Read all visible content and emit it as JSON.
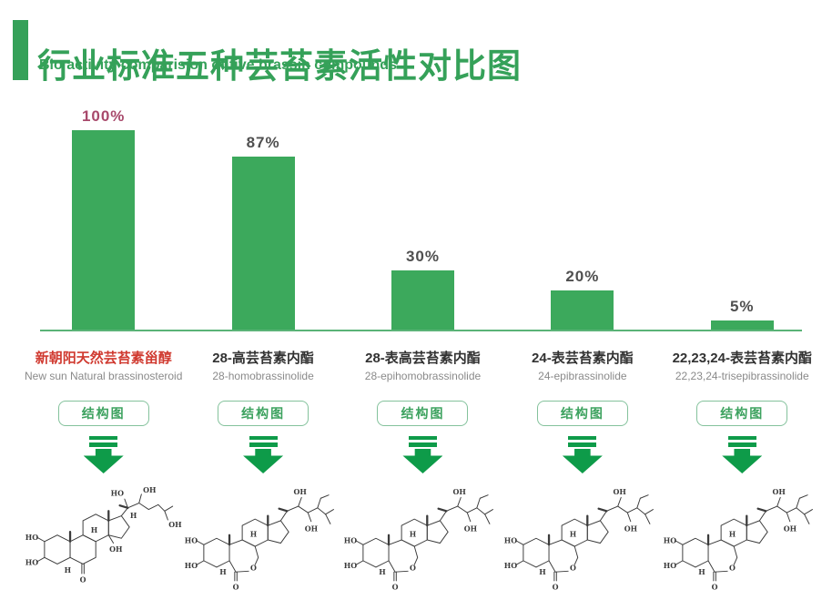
{
  "header": {
    "title_zh": "行业标准五种芸苔素活性对比图",
    "title_en": "Bio activity comparision of five brassin compounds"
  },
  "ui": {
    "structure_button": "结构图"
  },
  "colors": {
    "title_green": "#35a159",
    "bar_green": "#3ca95c",
    "baseline_green": "#5ab377",
    "button_green": "#3da25f",
    "arrow_green": "#0e9b49",
    "highlight_red": "#d03a30",
    "highlight_pink": "#a8496b",
    "percent_gray": "#4f4f4f"
  },
  "chart_data": {
    "type": "bar",
    "title": "行业标准五种芸苔素活性对比图",
    "subtitle": "Bio activity comparision of five brassin compounds",
    "categories": [
      "新朝阳天然芸苔素甾醇",
      "28-高芸苔素内酯",
      "28-表高芸苔素内酯",
      "24-表芸苔素内酯",
      "22,23,24-表芸苔素内酯"
    ],
    "categories_en": [
      "New sun Natural brassinosteroid",
      "28-homobrassinolide",
      "28-epihomobrassinolide",
      "24-epibrassinolide",
      "22,23,24-trisepibrassinolide"
    ],
    "values": [
      100,
      87,
      30,
      20,
      5
    ],
    "value_labels": [
      "100%",
      "87%",
      "30%",
      "20%",
      "5%"
    ],
    "unit": "%",
    "ylim": [
      0,
      100
    ],
    "grid": false,
    "legend": false,
    "bar_color": "#3ca95c"
  },
  "compounds": [
    {
      "value": 100,
      "value_label": "100%",
      "name_zh": "新朝阳天然芸苔素甾醇",
      "name_en": "New sun Natural brassinosteroid",
      "highlight": true,
      "structure_type": "ketone"
    },
    {
      "value": 87,
      "value_label": "87%",
      "name_zh": "28-高芸苔素内酯",
      "name_en": "28-homobrassinolide",
      "highlight": false,
      "structure_type": "lactone"
    },
    {
      "value": 30,
      "value_label": "30%",
      "name_zh": "28-表高芸苔素内酯",
      "name_en": "28-epihomobrassinolide",
      "highlight": false,
      "structure_type": "lactone"
    },
    {
      "value": 20,
      "value_label": "20%",
      "name_zh": "24-表芸苔素内酯",
      "name_en": "24-epibrassinolide",
      "highlight": false,
      "structure_type": "lactone"
    },
    {
      "value": 5,
      "value_label": "5%",
      "name_zh": "22,23,24-表芸苔素内酯",
      "name_en": "22,23,24-trisepibrassinolide",
      "highlight": false,
      "structure_type": "lactone"
    }
  ],
  "structure": {
    "labels": {
      "ho": "HO",
      "oh": "OH",
      "h": "H",
      "o": "O"
    }
  }
}
